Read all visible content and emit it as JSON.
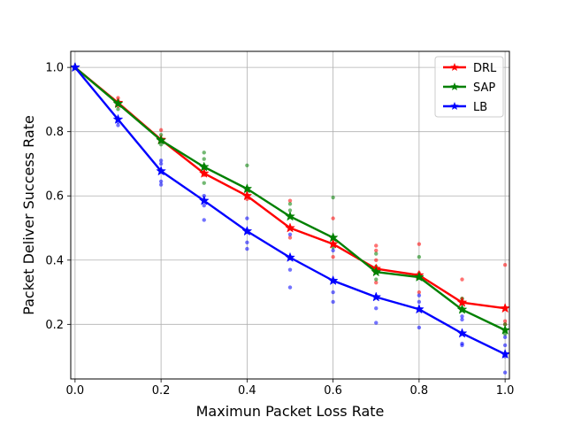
{
  "chart_data": {
    "type": "line",
    "title": "",
    "xlabel": "Maximun Packet Loss Rate",
    "ylabel": "Packet Deliver Success Rate",
    "xlim": [
      -0.01,
      1.01
    ],
    "ylim": [
      0.03,
      1.05
    ],
    "x_ticks": [
      0.0,
      0.2,
      0.4,
      0.6,
      0.8,
      1.0
    ],
    "x_tick_labels": [
      "0.0",
      "0.2",
      "0.4",
      "0.6",
      "0.8",
      "1.0"
    ],
    "y_ticks": [
      0.2,
      0.4,
      0.6,
      0.8,
      1.0
    ],
    "y_tick_labels": [
      "0.2",
      "0.4",
      "0.6",
      "0.8",
      "1.0"
    ],
    "grid": true,
    "legend": "top-right",
    "x": [
      0.0,
      0.1,
      0.2,
      0.3,
      0.4,
      0.5,
      0.6,
      0.7,
      0.8,
      0.9,
      1.0
    ],
    "series": [
      {
        "name": "DRL",
        "color": "#ff0000",
        "values": [
          1.0,
          0.89,
          0.775,
          0.67,
          0.6,
          0.5,
          0.45,
          0.373,
          0.353,
          0.268,
          0.25
        ],
        "scatter": [
          [
            0.1,
            0.905
          ],
          [
            0.1,
            0.88
          ],
          [
            0.2,
            0.805
          ],
          [
            0.2,
            0.77
          ],
          [
            0.3,
            0.69
          ],
          [
            0.3,
            0.665
          ],
          [
            0.4,
            0.62
          ],
          [
            0.4,
            0.59
          ],
          [
            0.5,
            0.585
          ],
          [
            0.5,
            0.5
          ],
          [
            0.5,
            0.47
          ],
          [
            0.6,
            0.53
          ],
          [
            0.6,
            0.45
          ],
          [
            0.6,
            0.41
          ],
          [
            0.7,
            0.445
          ],
          [
            0.7,
            0.43
          ],
          [
            0.7,
            0.4
          ],
          [
            0.7,
            0.33
          ],
          [
            0.8,
            0.45
          ],
          [
            0.8,
            0.36
          ],
          [
            0.8,
            0.3
          ],
          [
            0.9,
            0.34
          ],
          [
            0.9,
            0.28
          ],
          [
            0.9,
            0.27
          ],
          [
            1.0,
            0.385
          ],
          [
            1.0,
            0.21
          ],
          [
            1.0,
            0.2
          ]
        ]
      },
      {
        "name": "SAP",
        "color": "#008000",
        "values": [
          1.0,
          0.887,
          0.773,
          0.69,
          0.622,
          0.536,
          0.47,
          0.363,
          0.347,
          0.246,
          0.182
        ],
        "scatter": [
          [
            0.1,
            0.895
          ],
          [
            0.1,
            0.87
          ],
          [
            0.2,
            0.79
          ],
          [
            0.2,
            0.76
          ],
          [
            0.3,
            0.735
          ],
          [
            0.3,
            0.715
          ],
          [
            0.3,
            0.695
          ],
          [
            0.3,
            0.64
          ],
          [
            0.4,
            0.695
          ],
          [
            0.4,
            0.615
          ],
          [
            0.5,
            0.575
          ],
          [
            0.5,
            0.555
          ],
          [
            0.6,
            0.595
          ],
          [
            0.6,
            0.44
          ],
          [
            0.7,
            0.42
          ],
          [
            0.7,
            0.38
          ],
          [
            0.7,
            0.34
          ],
          [
            0.8,
            0.41
          ],
          [
            0.8,
            0.35
          ],
          [
            0.9,
            0.28
          ],
          [
            0.9,
            0.25
          ],
          [
            1.0,
            0.2
          ],
          [
            1.0,
            0.17
          ]
        ]
      },
      {
        "name": "LB",
        "color": "#0000ff",
        "values": [
          1.0,
          0.838,
          0.677,
          0.585,
          0.49,
          0.408,
          0.336,
          0.285,
          0.247,
          0.172,
          0.107
        ],
        "scatter": [
          [
            0.1,
            0.83
          ],
          [
            0.1,
            0.82
          ],
          [
            0.2,
            0.71
          ],
          [
            0.2,
            0.7
          ],
          [
            0.2,
            0.645
          ],
          [
            0.2,
            0.635
          ],
          [
            0.3,
            0.6
          ],
          [
            0.3,
            0.57
          ],
          [
            0.3,
            0.525
          ],
          [
            0.4,
            0.53
          ],
          [
            0.4,
            0.455
          ],
          [
            0.4,
            0.435
          ],
          [
            0.5,
            0.48
          ],
          [
            0.5,
            0.37
          ],
          [
            0.5,
            0.315
          ],
          [
            0.6,
            0.43
          ],
          [
            0.6,
            0.3
          ],
          [
            0.6,
            0.27
          ],
          [
            0.7,
            0.25
          ],
          [
            0.7,
            0.205
          ],
          [
            0.8,
            0.29
          ],
          [
            0.8,
            0.27
          ],
          [
            0.8,
            0.19
          ],
          [
            0.9,
            0.225
          ],
          [
            0.9,
            0.215
          ],
          [
            0.9,
            0.14
          ],
          [
            0.9,
            0.135
          ],
          [
            1.0,
            0.16
          ],
          [
            1.0,
            0.135
          ],
          [
            1.0,
            0.1
          ],
          [
            1.0,
            0.05
          ]
        ]
      }
    ]
  }
}
